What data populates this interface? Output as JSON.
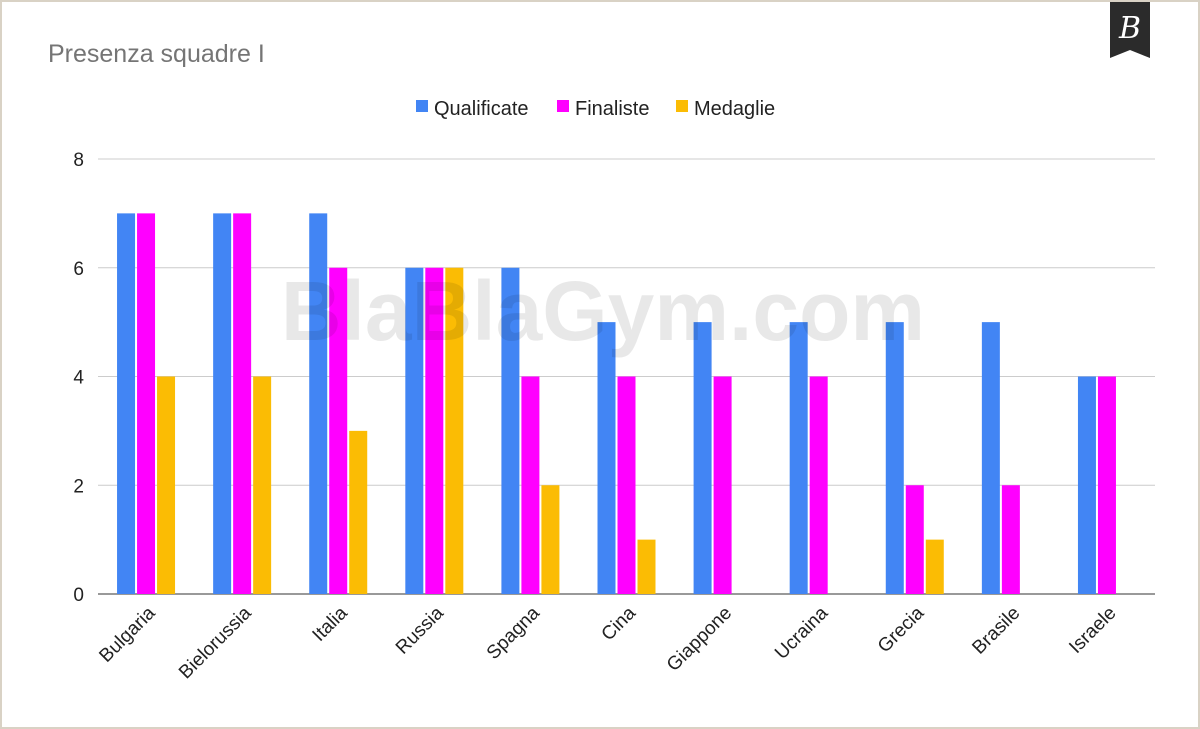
{
  "chart_data": {
    "type": "bar",
    "title": "Presenza squadre I",
    "categories": [
      "Bulgaria",
      "Bielorussia",
      "Italia",
      "Russia",
      "Spagna",
      "Cina",
      "Giappone",
      "Ucraina",
      "Grecia",
      "Brasile",
      "Israele"
    ],
    "series": [
      {
        "name": "Qualificate",
        "color": "#4285f4",
        "values": [
          7,
          7,
          7,
          6,
          6,
          5,
          5,
          5,
          5,
          5,
          4
        ]
      },
      {
        "name": "Finaliste",
        "color": "#ff00ff",
        "values": [
          7,
          7,
          6,
          6,
          4,
          4,
          4,
          4,
          2,
          2,
          4
        ]
      },
      {
        "name": "Medaglie",
        "color": "#fbbc04",
        "values": [
          4,
          4,
          3,
          6,
          2,
          1,
          0,
          0,
          1,
          0,
          0
        ]
      }
    ],
    "yticks": [
      "0",
      "2",
      "4",
      "6",
      "8"
    ],
    "ylim": [
      0,
      8
    ],
    "grid": true,
    "legend": "top-center",
    "xlabel": "",
    "ylabel": ""
  },
  "watermark": "BlaBlaGym.com",
  "logo": {
    "letter": "B",
    "icon": "blablagym-logo"
  }
}
